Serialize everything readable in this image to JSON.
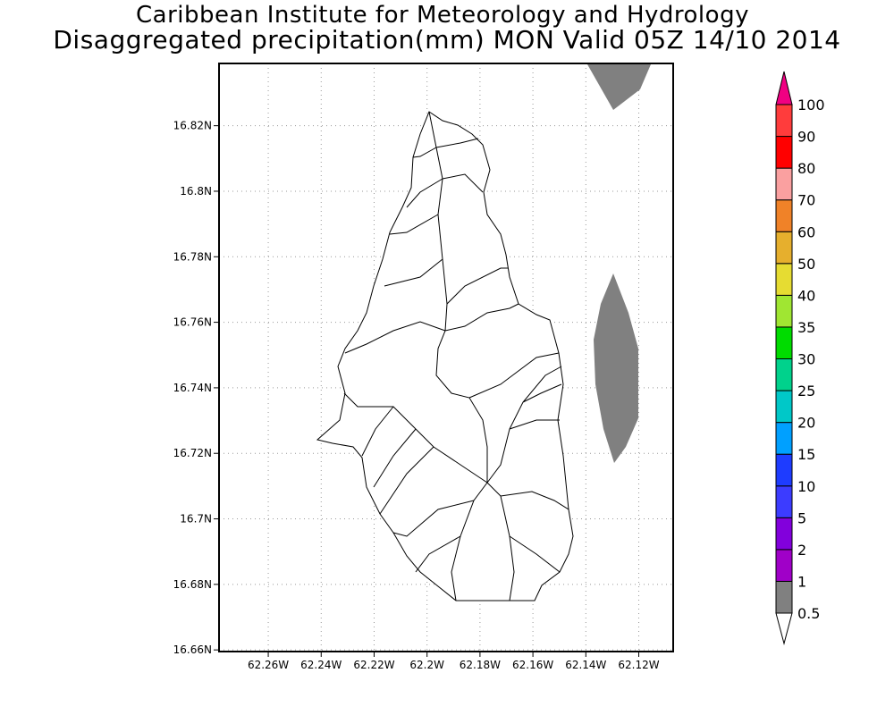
{
  "title": {
    "line1": "Caribbean Institute for Meteorology and Hydrology",
    "line2": "Disaggregated precipitation(mm) MON Valid 05Z 14/10 2014"
  },
  "map": {
    "lon_range_w": [
      62.2786,
      62.107
    ],
    "lat_range_n": [
      16.6595,
      16.839
    ],
    "lon_ticks": [
      {
        "value": 62.26,
        "label": "62.26W"
      },
      {
        "value": 62.24,
        "label": "62.24W"
      },
      {
        "value": 62.22,
        "label": "62.22W"
      },
      {
        "value": 62.2,
        "label": "62.2W"
      },
      {
        "value": 62.18,
        "label": "62.18W"
      },
      {
        "value": 62.16,
        "label": "62.16W"
      },
      {
        "value": 62.14,
        "label": "62.14W"
      },
      {
        "value": 62.12,
        "label": "62.12W"
      }
    ],
    "lat_ticks": [
      {
        "value": 16.66,
        "label": "16.66N"
      },
      {
        "value": 16.68,
        "label": "16.68N"
      },
      {
        "value": 16.7,
        "label": "16.7N"
      },
      {
        "value": 16.72,
        "label": "16.72N"
      },
      {
        "value": 16.74,
        "label": "16.74N"
      },
      {
        "value": 16.76,
        "label": "16.76N"
      },
      {
        "value": 16.78,
        "label": "16.78N"
      },
      {
        "value": 16.8,
        "label": "16.8N"
      },
      {
        "value": 16.82,
        "label": "16.82N"
      }
    ],
    "precip_fill_color": "#808080"
  },
  "colorbar": {
    "levels": [
      "0.5",
      "1",
      "2",
      "5",
      "10",
      "15",
      "20",
      "25",
      "30",
      "35",
      "40",
      "50",
      "60",
      "70",
      "80",
      "90",
      "100"
    ],
    "colors": [
      "#808080",
      "#a000c8",
      "#8200dc",
      "#3c3cff",
      "#1e3cff",
      "#00a0ff",
      "#00c8c8",
      "#00d28c",
      "#00dc00",
      "#a0e632",
      "#e6dc32",
      "#e6af2d",
      "#f08228",
      "#faa0a0",
      "#ff0000",
      "#ff3c3c"
    ],
    "under_color": "#ffffff",
    "over_color": "#f00082"
  }
}
